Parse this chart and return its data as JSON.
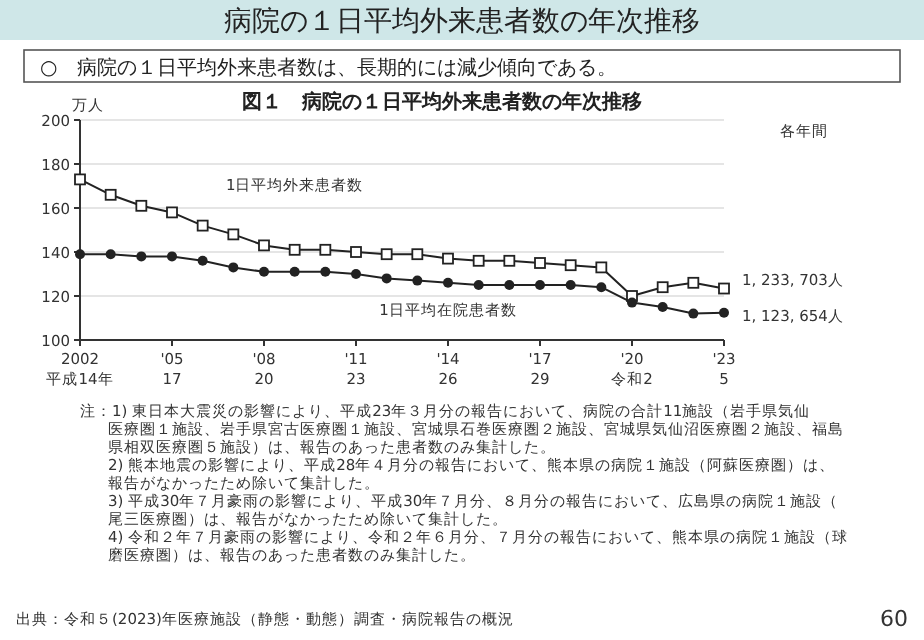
{
  "chart_data": {
    "type": "line",
    "title": "病院の１日平均外来患者数の年次推移",
    "subtitle": "○　病院の１日平均外来患者数は、長期的には減少傾向である。",
    "ylabel": "万人",
    "categories": [
      "2002\n平成14年",
      null,
      null,
      "'05\n17",
      null,
      null,
      "'08\n20",
      null,
      null,
      "'11\n23",
      null,
      null,
      "'14\n26",
      null,
      null,
      "'17\n29",
      null,
      null,
      "'20\n令和2",
      null,
      null,
      "'23\n5"
    ],
    "ylim": [
      100,
      200
    ],
    "yticks": [
      100,
      120,
      140,
      160,
      180,
      200
    ],
    "grid": "y",
    "legend": false,
    "series": [
      {
        "name": "1日平均外来患者数",
        "color": "#222222",
        "marker": "square",
        "values": [
          173,
          166,
          161,
          158,
          152,
          148,
          143,
          141,
          141,
          140,
          139,
          139,
          137,
          136,
          136,
          135,
          134,
          133,
          120,
          124,
          126,
          123.4
        ]
      },
      {
        "name": "1日平均在院患者数",
        "color": "#222222",
        "marker": "circle",
        "values": [
          139,
          139,
          138,
          138,
          136,
          133,
          131,
          131,
          131,
          130,
          128,
          127,
          126,
          125,
          125,
          125,
          125,
          124,
          117,
          115,
          112,
          112.4
        ]
      }
    ],
    "annotations": [
      "図１　病院の１日平均外来患者数の年次推移",
      "各年間",
      "注：1) 東日本大震災の影響により、平成23年３月分の報告において、病院の合計11施設（岩手県気仙医療圏１施設、岩手県宮古医療圏１施設、宮城県石巻医療圏２施設、宮城県気仙沼医療圏２施設、福島県相双医療圏５施設）は、報告のあった患者数のみ集計した。",
      "2) 熊本地震の影響により、平成28年４月分の報告において、熊本県の病院１施設（阿蘇医療圏）は、報告がなかったため除いて集計した。",
      "3) 平成30年７月豪雨の影響により、平成30年７月分、８月分の報告において、広島県の病院１施設（尾三医療圏）は、報告がなかったため除いて集計した。",
      "4) 令和２年７月豪雨の影響により、令和２年６月分、７月分の報告において、熊本県の病院１施設（球磨医療圏）は、報告のあった患者数のみ集計した。",
      "出典：令和５(2023)年医療施設（静態・動態）調査・病院報告の概況",
      "60",
      {
        "text": "1, 233, 703人",
        "x": "'23\n5",
        "y": 123.4
      },
      {
        "text": "1, 123, 654人",
        "x": "'23\n5",
        "y": 112.4
      }
    ]
  }
}
